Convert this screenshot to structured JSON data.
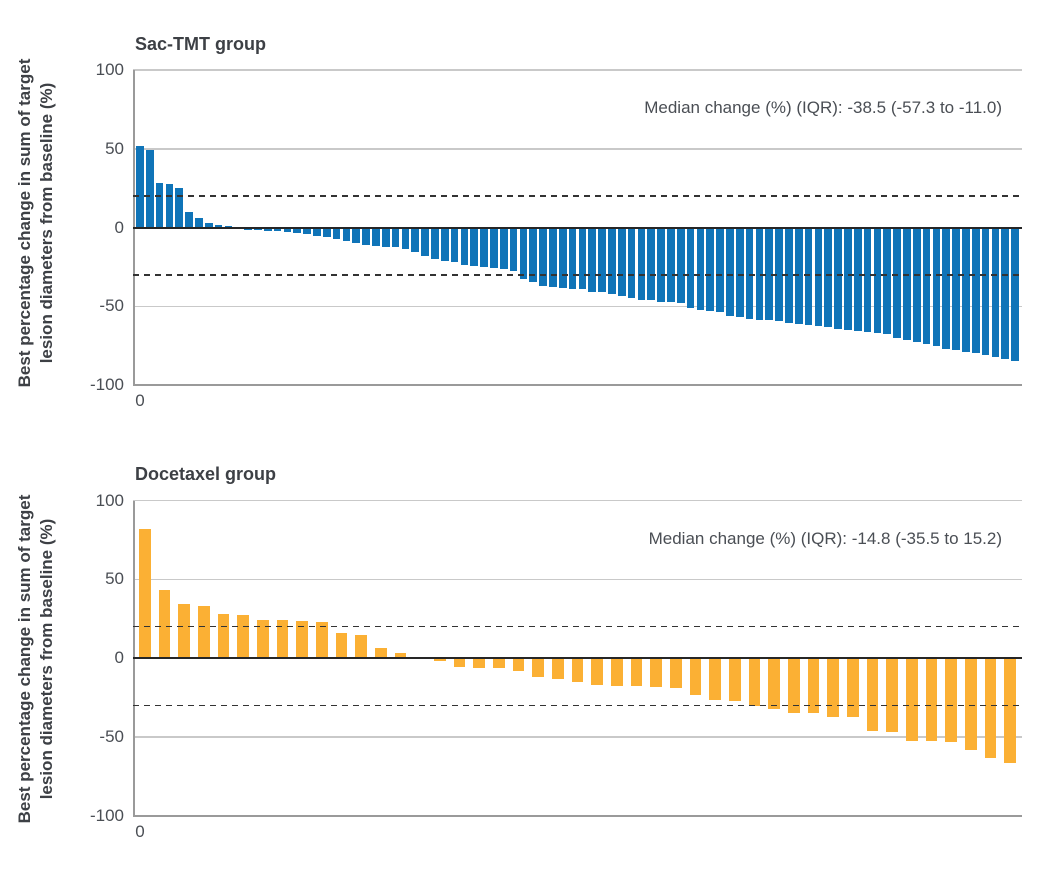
{
  "figure": {
    "ylabel_lines": [
      "Best percentage change in sum of target",
      "lesion diameters from baseline (%)"
    ],
    "x_origin_label": "0"
  },
  "colors": {
    "sac_tmt_bar": "#0f74b8",
    "docetaxel_bar": "#fbb034",
    "grid": "#c9c9c9",
    "axis": "#9a9a9a",
    "zero_line": "#262626",
    "dashed_line": "#333333",
    "title_text": "#3d4045",
    "tick_text": "#4a4e54"
  },
  "chart_data": [
    {
      "type": "bar",
      "title": "Sac-TMT group",
      "annotation": "Median change (%) (IQR): -38.5 (-57.3 to -11.0)",
      "ylabel": "Best percentage change in sum of target lesion diameters from baseline (%)",
      "xlabel": "",
      "x_origin_tick": "0",
      "n_bars": 90,
      "bar_color": "#0f74b8",
      "ylim": [
        -100,
        100
      ],
      "yticks": [
        100,
        50,
        0,
        -50,
        -100
      ],
      "reference_lines": [
        20,
        -30
      ],
      "grid": "horizontal",
      "legend": "none",
      "values": [
        52,
        49,
        28.5,
        27.5,
        25,
        10,
        6,
        3,
        1.5,
        0.8,
        0.3,
        -0.5,
        -1,
        -1.4,
        -1.8,
        -2.2,
        -2.8,
        -3.3,
        -4.9,
        -5.5,
        -6.5,
        -8,
        -9.5,
        -10.5,
        -11,
        -11.5,
        -12,
        -13,
        -15,
        -17.5,
        -19.6,
        -20.9,
        -21.3,
        -23.4,
        -23.8,
        -24.5,
        -25.1,
        -26,
        -26.8,
        -32.3,
        -34,
        -36.2,
        -37.4,
        -37.9,
        -38.3,
        -38.7,
        -40,
        -40.4,
        -41.5,
        -43,
        -44.3,
        -45.1,
        -45.1,
        -46.4,
        -46.8,
        -47.2,
        -50.6,
        -51.5,
        -52.1,
        -52.8,
        -55.3,
        -56.4,
        -57.4,
        -58,
        -58.4,
        -58.9,
        -60.1,
        -60.5,
        -61,
        -62.2,
        -62.7,
        -63.7,
        -64.3,
        -64.8,
        -65.8,
        -66.5,
        -67.3,
        -69.4,
        -70.7,
        -72.2,
        -73.6,
        -74.9,
        -76.4,
        -77.4,
        -78.5,
        -79.1,
        -80.6,
        -81.6,
        -83,
        -84
      ]
    },
    {
      "type": "bar",
      "title": "Docetaxel group",
      "annotation": "Median change (%) (IQR): -14.8 (-35.5 to 15.2)",
      "ylabel": "Best percentage change in sum of target lesion diameters from baseline (%)",
      "xlabel": "",
      "x_origin_tick": "0",
      "n_bars": 45,
      "bar_color": "#fbb034",
      "ylim": [
        -100,
        100
      ],
      "yticks": [
        100,
        50,
        0,
        -50,
        -100
      ],
      "reference_lines": [
        20,
        -30
      ],
      "grid": "horizontal",
      "legend": "none",
      "values": [
        82,
        43,
        34,
        33,
        28,
        27.5,
        24,
        24,
        23.5,
        23,
        16,
        14.5,
        6.5,
        3,
        0.5,
        -1.5,
        -5,
        -5.5,
        -6,
        -7.5,
        -11.5,
        -13,
        -14.8,
        -16.3,
        -16.9,
        -17,
        -18,
        -18.5,
        -22.6,
        -26,
        -26.5,
        -29.6,
        -31.7,
        -34.5,
        -34.5,
        -36.6,
        -37,
        -45.5,
        -46.5,
        -51.8,
        -51.8,
        -53,
        -58,
        -63,
        -66.2
      ]
    }
  ]
}
